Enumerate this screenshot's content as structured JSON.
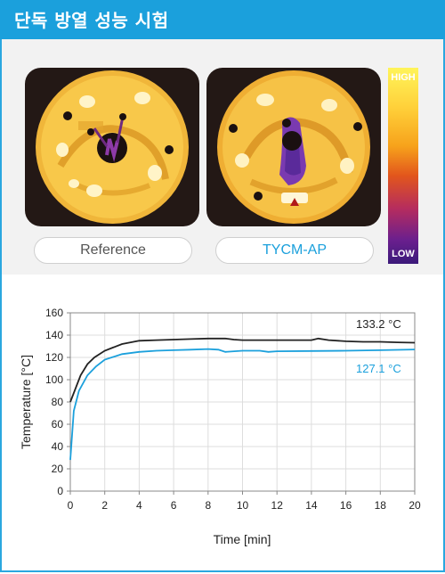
{
  "header": {
    "title": "단독 방열 성능 시험"
  },
  "thermal_images": [
    {
      "label": "Reference",
      "label_color": "#555555"
    },
    {
      "label": "TYCM-AP",
      "label_color": "#1ba0dc"
    }
  ],
  "scale": {
    "high_label": "HIGH",
    "low_label": "LOW"
  },
  "colors": {
    "accent": "#1ba0dc",
    "series_ref": "#222222",
    "series_tycm": "#1ba0dc"
  },
  "chart_data": {
    "type": "line",
    "title": "",
    "xlabel": "Time [min]",
    "ylabel": "Temperature [°C]",
    "xlim": [
      0,
      20
    ],
    "ylim": [
      0,
      160
    ],
    "xticks": [
      0,
      2,
      4,
      6,
      8,
      10,
      12,
      14,
      16,
      18,
      20
    ],
    "yticks": [
      0,
      20,
      40,
      60,
      80,
      100,
      120,
      140,
      160
    ],
    "grid": true,
    "annotations": [
      {
        "text": "133.2 °C",
        "series": 0
      },
      {
        "text": "127.1 °C",
        "series": 1
      }
    ],
    "series": [
      {
        "color": "#222222",
        "x": [
          0,
          0.3,
          0.6,
          1.0,
          1.4,
          2.0,
          3.0,
          4.0,
          5.0,
          6.0,
          7.0,
          8.0,
          9.0,
          9.5,
          10.0,
          11.0,
          12.0,
          13.0,
          14.0,
          14.4,
          15.0,
          16.0,
          17.0,
          18.0,
          19.0,
          20.0
        ],
        "y": [
          80,
          92,
          104,
          114,
          120,
          126,
          132,
          135,
          135.5,
          136,
          136.5,
          137,
          137,
          136,
          135.5,
          135.5,
          135.5,
          135.5,
          135.5,
          137,
          135.5,
          134.5,
          134,
          134,
          133.5,
          133.2
        ]
      },
      {
        "color": "#1ba0dc",
        "x": [
          0,
          0.2,
          0.5,
          1.0,
          1.5,
          2.0,
          3.0,
          4.0,
          5.0,
          6.0,
          7.0,
          8.0,
          8.6,
          9.0,
          10.0,
          11.0,
          11.5,
          12.0,
          14.0,
          16.0,
          18.0,
          20.0
        ],
        "y": [
          28,
          72,
          90,
          104,
          112,
          118,
          123,
          125,
          126,
          126.5,
          127,
          127.5,
          127,
          125,
          126,
          126,
          125,
          125.5,
          125.8,
          126,
          126.5,
          127.1
        ]
      }
    ]
  }
}
